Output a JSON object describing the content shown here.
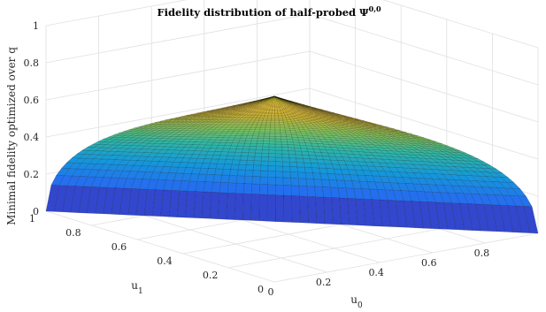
{
  "chart_data": {
    "type": "surface",
    "title": "Fidelity distribution of half-probed",
    "title_symbol": "Ψ",
    "title_superscript": "0,0",
    "xlabel": "u",
    "xlabel_sub": "0",
    "ylabel": "u",
    "ylabel_sub": "1",
    "zlabel": "Minimal fidelity optimized over q",
    "xlim": [
      0,
      1
    ],
    "ylim": [
      0,
      1
    ],
    "zlim": [
      0,
      1
    ],
    "x_ticks": [
      "0",
      "0.2",
      "0.4",
      "0.6",
      "0.8"
    ],
    "y_ticks": [
      "0",
      "0.2",
      "0.4",
      "0.6",
      "0.8",
      "1"
    ],
    "z_ticks": [
      "0",
      "0.2",
      "0.4",
      "0.6",
      "0.8",
      "1"
    ],
    "grid": true,
    "colormap": "parula",
    "domain": "u0 + u1 <= 1",
    "surface_samples": [
      {
        "u0": 0,
        "u1": 0,
        "z": 1.0
      },
      {
        "u0": 0.5,
        "u1": 0,
        "z": 0.71
      },
      {
        "u0": 1,
        "u1": 0,
        "z": 0.0
      },
      {
        "u0": 0,
        "u1": 0.5,
        "z": 0.71
      },
      {
        "u0": 0,
        "u1": 1,
        "z": 0.0
      },
      {
        "u0": 0.5,
        "u1": 0.5,
        "z": 0.0
      },
      {
        "u0": 0.25,
        "u1": 0.25,
        "z": 0.71
      },
      {
        "u0": 0.33,
        "u1": 0.33,
        "z": 0.58
      }
    ],
    "colors": {
      "low": "#3e26a8",
      "mid": "#2eb7a5",
      "high": "#f9fb15",
      "mesh": "#000000",
      "grid": "#e0e0e0"
    }
  }
}
